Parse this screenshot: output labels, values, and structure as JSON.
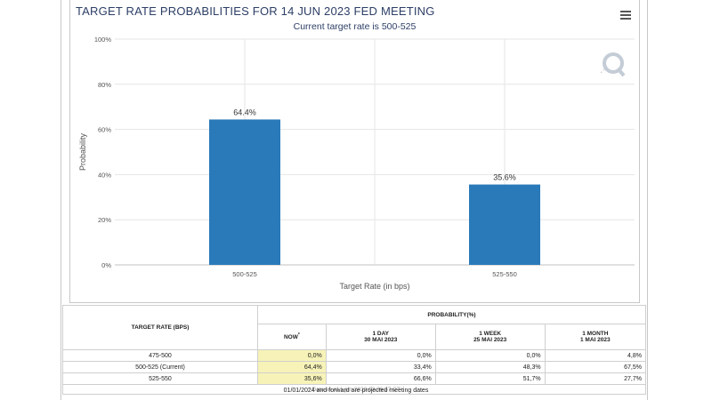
{
  "title": "TARGET RATE PROBABILITIES FOR 14 JUN 2023 FED MEETING",
  "subtitle": "Current target rate is 500-525",
  "chart_data": {
    "type": "bar",
    "categories": [
      "500-525",
      "525-550"
    ],
    "values": [
      64.4,
      35.6
    ],
    "data_labels": [
      "64.4%",
      "35.6%"
    ],
    "xlabel": "Target Rate (in bps)",
    "ylabel": "Probability",
    "ylim": [
      0,
      100
    ],
    "y_ticks": [
      "0%",
      "20%",
      "40%",
      "60%",
      "80%",
      "100%"
    ],
    "grid": true,
    "bar_color": "#2a7ab9"
  },
  "table": {
    "rate_header": "TARGET RATE (BPS)",
    "prob_header": "PROBABILITY(%)",
    "columns": [
      {
        "label": "NOW",
        "date": "",
        "star": "*"
      },
      {
        "label": "1 DAY",
        "date": "30 MAI 2023",
        "star": ""
      },
      {
        "label": "1 WEEK",
        "date": "25 MAI 2023",
        "star": ""
      },
      {
        "label": "1 MONTH",
        "date": "1 MAI 2023",
        "star": ""
      }
    ],
    "rows": [
      {
        "rate": "475-500",
        "values": [
          "0,0%",
          "0,0%",
          "0,0%",
          "4,8%"
        ]
      },
      {
        "rate": "500-525 (Current)",
        "values": [
          "64,4%",
          "33,4%",
          "48,3%",
          "67,5%"
        ]
      },
      {
        "rate": "525-550",
        "values": [
          "35,6%",
          "66,6%",
          "51,7%",
          "27,7%"
        ]
      }
    ],
    "as_of": "* Data as of 1 jun 2023 02:36:57 CT",
    "now_highlight": "#f7f3b8"
  },
  "footnote": "01/01/2024 and forward are projected meeting dates",
  "icons": {
    "menu": "hamburger-menu-icon",
    "logo": "quikstrike-q-logo-icon"
  }
}
